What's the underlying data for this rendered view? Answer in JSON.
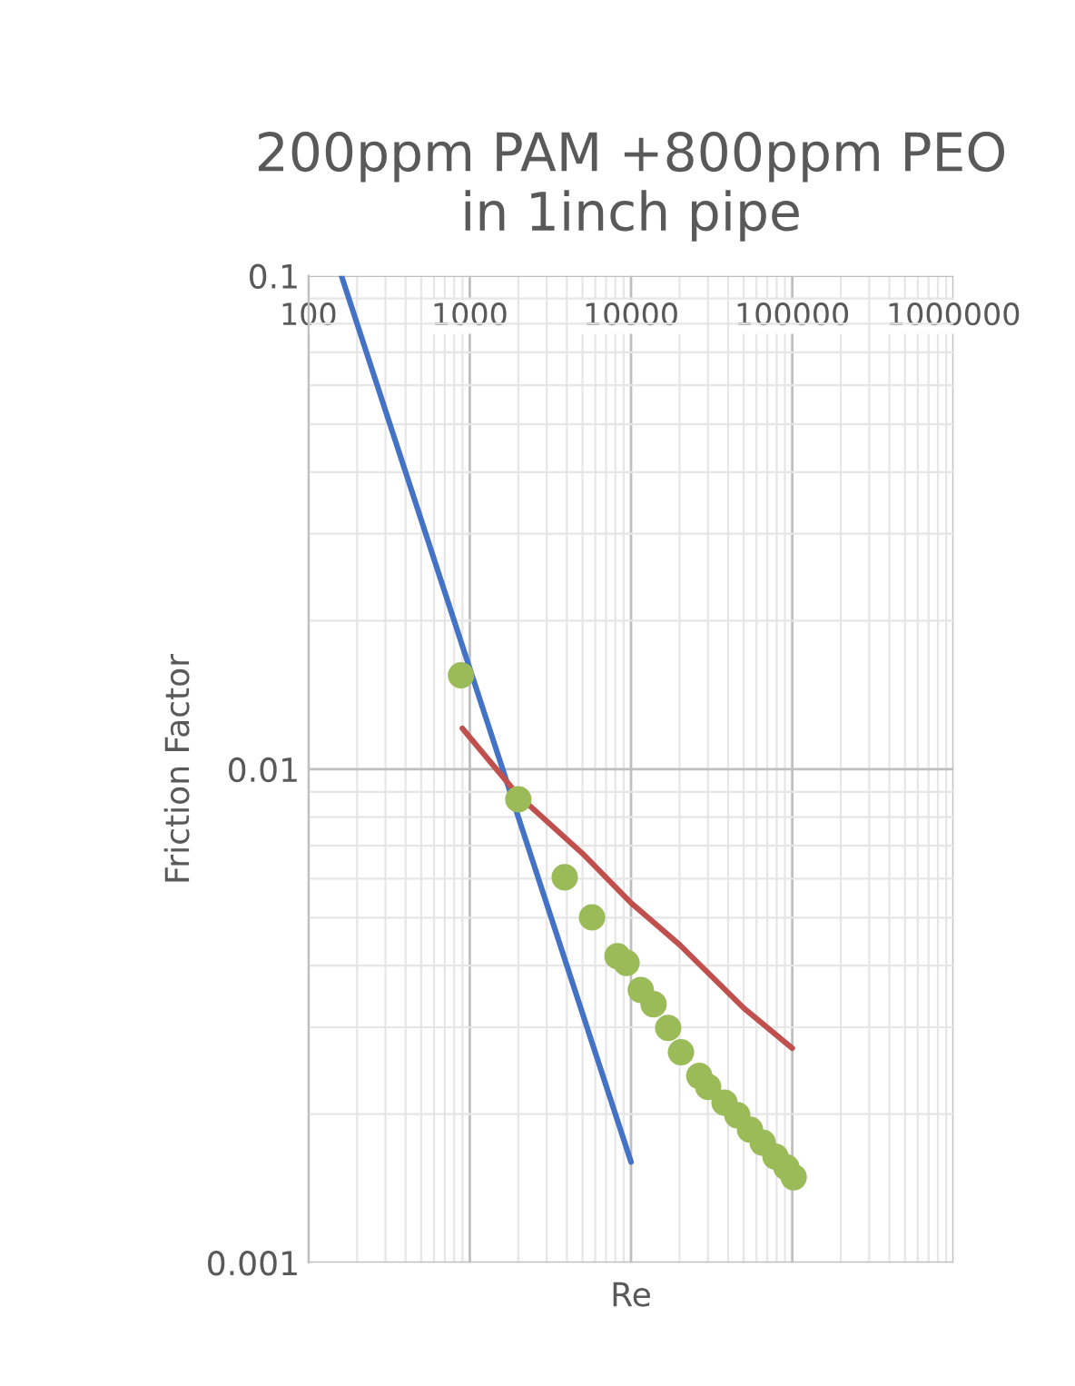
{
  "chart_data": {
    "type": "line",
    "title": "200ppm PAM +800ppm PEO\nin 1inch pipe",
    "xlabel": "Re",
    "ylabel": "Friction Factor",
    "log": "xy",
    "grid": true,
    "legend": false,
    "xlim": [
      100,
      1000000
    ],
    "xticks": [
      100,
      1000,
      10000,
      100000,
      1000000
    ],
    "ylim": [
      0.001,
      0.1
    ],
    "yticks": [
      0.001,
      0.01,
      0.1
    ],
    "series": [
      {
        "color": "#4472c4",
        "x": [
          160,
          10000
        ],
        "values": [
          0.1,
          0.0016
        ]
      },
      {
        "color": "#c0504d",
        "x": [
          900,
          2000,
          5000,
          10000,
          20000,
          50000,
          100000
        ],
        "values": [
          0.0121,
          0.00885,
          0.00675,
          0.00536,
          0.00441,
          0.00328,
          0.00272
        ]
      },
      {
        "type": "scatter",
        "color": "#9bbb59",
        "marker": "circle",
        "x": [
          883,
          2000,
          3880,
          5730,
          8240,
          9380,
          11500,
          13800,
          17000,
          20400,
          26500,
          30100,
          38000,
          45600,
          54700,
          65600,
          78700,
          91900,
          102000
        ],
        "values": [
          0.0155,
          0.00869,
          0.00604,
          0.00501,
          0.00418,
          0.00405,
          0.00357,
          0.00334,
          0.00299,
          0.00267,
          0.00239,
          0.00227,
          0.00211,
          0.00199,
          0.00186,
          0.00175,
          0.00164,
          0.00156,
          0.00149
        ]
      }
    ]
  }
}
